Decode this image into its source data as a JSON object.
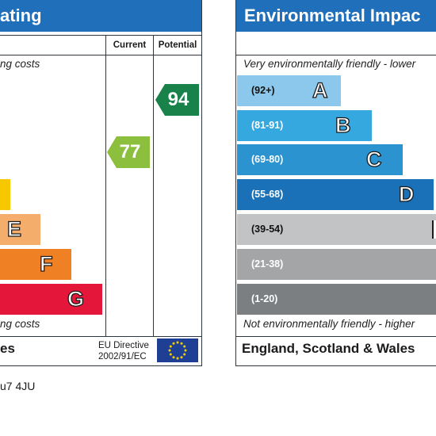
{
  "left_panel": {
    "title_fragment": "ating",
    "column_current": "Current",
    "column_potential": "Potential",
    "top_note": "ng costs",
    "bottom_note": "ng costs",
    "bands": [
      {
        "letter": "",
        "color": "#f7c800"
      },
      {
        "letter": "E",
        "color": "#f4ad6a"
      },
      {
        "letter": "F",
        "color": "#ef8023"
      },
      {
        "letter": "G",
        "color": "#e4173a"
      }
    ],
    "current_rating": "77",
    "current_color": "#8dbf3f",
    "potential_rating": "94",
    "potential_color": "#19814a",
    "footer_fragment": "es",
    "eu_line1": "EU Directive",
    "eu_line2": "2002/91/EC"
  },
  "right_panel": {
    "title": "Environmental Impac",
    "top_note": "Very environmentally friendly - lower",
    "bottom_note": "Not environmentally friendly - higher",
    "bands": [
      {
        "range": "(92+)",
        "letter": "A",
        "color": "#8cc8eb"
      },
      {
        "range": "(81-91)",
        "letter": "B",
        "color": "#35a8e0"
      },
      {
        "range": "(69-80)",
        "letter": "C",
        "color": "#2b93cf"
      },
      {
        "range": "(55-68)",
        "letter": "D",
        "color": "#1a71b8"
      },
      {
        "range": "(39-54)",
        "letter": "",
        "color": "#c1c3c4"
      },
      {
        "range": "(21-38)",
        "letter": "",
        "color": "#a3a5a7"
      },
      {
        "range": "(1-20)",
        "letter": "",
        "color": "#7c7f81"
      }
    ],
    "footer": "England, Scotland & Wales"
  },
  "postcode_fragment": "u7 4JU"
}
